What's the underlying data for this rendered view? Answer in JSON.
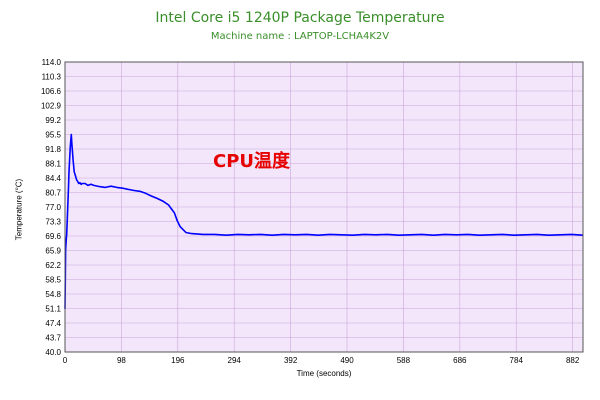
{
  "chart_data": {
    "type": "line",
    "title": "Intel Core i5 1240P Package Temperature",
    "subtitle": "Machine name : LAPTOP-LCHA4K2V",
    "xlabel": "Time (seconds)",
    "ylabel": "Temperature (°C)",
    "annotation": "CPU温度",
    "xlim": [
      0,
      900
    ],
    "ylim": [
      40.0,
      114.0
    ],
    "x_ticks": [
      "0",
      "98",
      "196",
      "294",
      "392",
      "490",
      "588",
      "686",
      "784",
      "882"
    ],
    "y_ticks": [
      "40.0",
      "43.7",
      "47.4",
      "51.1",
      "54.8",
      "58.5",
      "62.2",
      "65.9",
      "69.6",
      "73.3",
      "77.0",
      "80.7",
      "84.4",
      "88.1",
      "91.8",
      "95.5",
      "99.2",
      "102.9",
      "106.6",
      "110.3",
      "114.0"
    ],
    "grid": true,
    "colors": {
      "line": "#0000ff",
      "plot_bg": "#f3e6fa",
      "grid": "#c9a6da",
      "title": "#3a8f2a",
      "annotation": "#e60000"
    },
    "series": [
      {
        "x": [
          0,
          1,
          2,
          3,
          4,
          5,
          6,
          7,
          8,
          9,
          10,
          11,
          12,
          13,
          14,
          16,
          18,
          20,
          22,
          24,
          26,
          28,
          30,
          35,
          40,
          45,
          50,
          60,
          70,
          80,
          90,
          100,
          110,
          120,
          130,
          140,
          150,
          160,
          170,
          180,
          185,
          190,
          195,
          200,
          210,
          220,
          240,
          260,
          280,
          300,
          320,
          340,
          360,
          380,
          400,
          420,
          440,
          460,
          480,
          500,
          520,
          540,
          560,
          580,
          600,
          620,
          640,
          660,
          680,
          700,
          720,
          740,
          760,
          780,
          800,
          820,
          840,
          860,
          880,
          900
        ],
        "y": [
          51.0,
          66.0,
          68.5,
          70.0,
          74.0,
          78.0,
          82.0,
          86.0,
          89.0,
          92.0,
          94.0,
          95.5,
          93.0,
          91.0,
          89.0,
          86.0,
          85.0,
          84.0,
          83.5,
          83.0,
          83.2,
          82.8,
          83.0,
          83.0,
          82.5,
          82.8,
          82.5,
          82.2,
          82.0,
          82.3,
          82.0,
          81.8,
          81.5,
          81.2,
          81.0,
          80.5,
          79.8,
          79.2,
          78.5,
          77.5,
          76.5,
          75.5,
          73.5,
          72.0,
          70.5,
          70.2,
          70.0,
          70.0,
          69.8,
          70.0,
          69.9,
          70.0,
          69.8,
          70.0,
          69.9,
          70.0,
          69.8,
          70.0,
          69.9,
          69.8,
          70.0,
          69.9,
          70.0,
          69.8,
          69.9,
          70.0,
          69.8,
          70.0,
          69.9,
          70.0,
          69.8,
          69.9,
          70.0,
          69.8,
          69.9,
          70.0,
          69.8,
          69.9,
          70.0,
          69.8
        ]
      }
    ]
  }
}
